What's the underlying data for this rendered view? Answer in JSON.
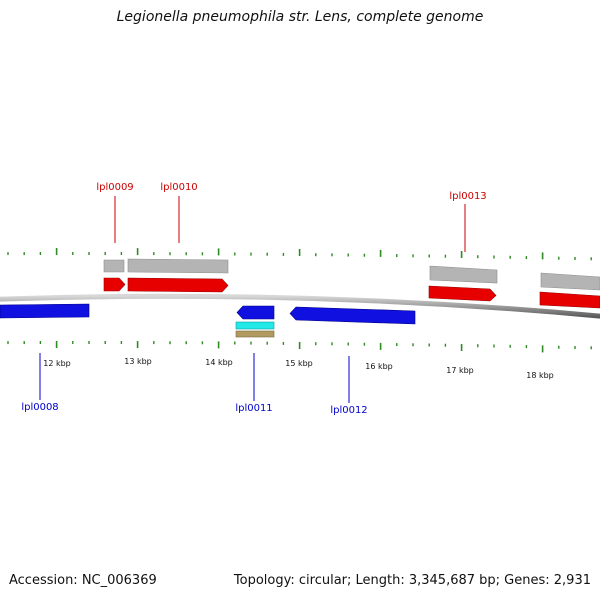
{
  "title": "Legionella pneumophila str. Lens, complete genome",
  "footer": {
    "accession": "Accession: NC_006369",
    "summary": "Topology: circular; Length: 3,345,687 bp; Genes: 2,931"
  },
  "colors": {
    "forward_gene": "#e60000",
    "reverse_gene": "#1010e0",
    "feature_gray": "#b4b4b4",
    "feature_cyan": "#22e8e8",
    "feature_tan": "#b09a60",
    "tick": "#2e8b22",
    "label_forward": "#cc0000",
    "label_reverse": "#0000cc",
    "backbone": "#8a8a8a"
  },
  "scale_labels": [
    "12 kbp",
    "13 kbp",
    "14 kbp",
    "15 kbp",
    "16 kbp",
    "17 kbp",
    "18 kbp"
  ],
  "genes": [
    {
      "label": "lpl0008",
      "strand": "reverse"
    },
    {
      "label": "lpl0009",
      "strand": "forward"
    },
    {
      "label": "lpl0010",
      "strand": "forward"
    },
    {
      "label": "lpl0011",
      "strand": "reverse"
    },
    {
      "label": "lpl0012",
      "strand": "reverse"
    },
    {
      "label": "lpl0013",
      "strand": "forward"
    }
  ]
}
